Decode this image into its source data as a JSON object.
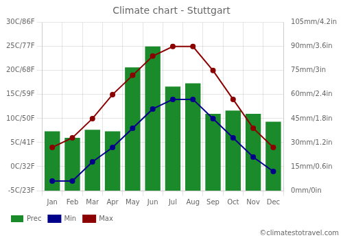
{
  "chart_data": {
    "type": "bar",
    "title": "Climate chart - Stuttgart",
    "categories": [
      "Jan",
      "Feb",
      "Mar",
      "Apr",
      "May",
      "Jun",
      "Jul",
      "Aug",
      "Sep",
      "Oct",
      "Nov",
      "Dec"
    ],
    "series": [
      {
        "name": "Prec",
        "type": "bar",
        "color": "#1a8a2a",
        "axis": "y2",
        "values": [
          37,
          33,
          38,
          37,
          77,
          90,
          65,
          67,
          48,
          50,
          48,
          43
        ]
      },
      {
        "name": "Min",
        "type": "line",
        "color": "#00008b",
        "marker": "circle",
        "values": [
          -3,
          -3,
          1,
          4,
          8,
          12,
          14,
          14,
          10,
          6,
          2,
          -1
        ]
      },
      {
        "name": "Max",
        "type": "line",
        "color": "#8b0000",
        "marker": "circle",
        "values": [
          4,
          6,
          10,
          15,
          19,
          23,
          25,
          25,
          20,
          14,
          8,
          4
        ]
      }
    ],
    "ylim": [
      -5,
      30
    ],
    "yticks": [
      {
        "value": -5,
        "label": "-5C/23F"
      },
      {
        "value": 0,
        "label": "0C/32F"
      },
      {
        "value": 5,
        "label": "5C/41F"
      },
      {
        "value": 10,
        "label": "10C/50F"
      },
      {
        "value": 15,
        "label": "15C/59F"
      },
      {
        "value": 20,
        "label": "20C/68F"
      },
      {
        "value": 25,
        "label": "25C/77F"
      },
      {
        "value": 30,
        "label": "30C/86F"
      }
    ],
    "y2lim": [
      0,
      105
    ],
    "y2ticks": [
      {
        "value": 0,
        "label": "0mm/0in"
      },
      {
        "value": 15,
        "label": "15mm/0.6in"
      },
      {
        "value": 30,
        "label": "30mm/1.2in"
      },
      {
        "value": 45,
        "label": "45mm/1.8in"
      },
      {
        "value": 60,
        "label": "60mm/2.4in"
      },
      {
        "value": 75,
        "label": "75mm/3in"
      },
      {
        "value": 90,
        "label": "90mm/3.6in"
      },
      {
        "value": 105,
        "label": "105mm/4.2in"
      }
    ],
    "grid": true,
    "legend": "bottom",
    "annotations": [
      "©climatestotravel.com"
    ]
  }
}
